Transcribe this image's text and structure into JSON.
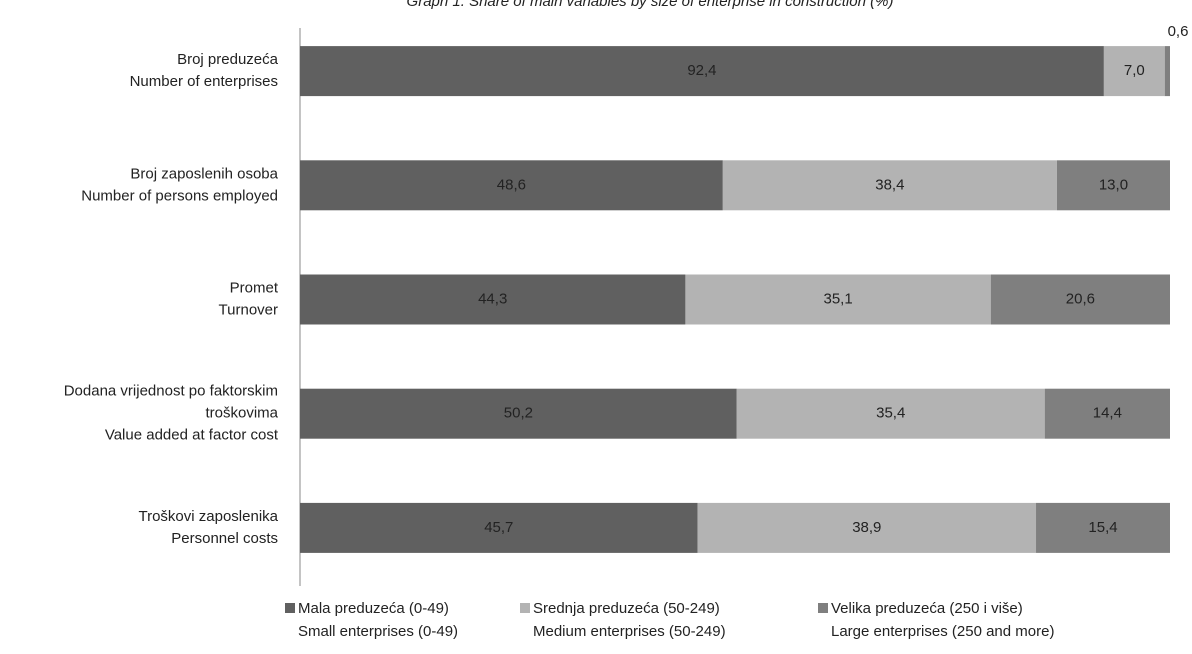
{
  "chart_data": {
    "type": "stacked-bar-horizontal",
    "title": "Graph 1. Share of main variables by size of enterprise in construction (%)",
    "categories": [
      [
        "Broj preduzeća",
        "Number of enterprises"
      ],
      [
        "Broj zaposlenih osoba",
        "Number of persons employed"
      ],
      [
        "Promet",
        "Turnover"
      ],
      [
        "Dodana vrijednost po faktorskim",
        "troškovima",
        "Value added at factor cost"
      ],
      [
        "Troškovi zaposlenika",
        "Personnel costs"
      ]
    ],
    "series": [
      {
        "name": [
          "Mala preduzeća (0-49)",
          "Small enterprises (0-49)"
        ],
        "color": "#606060",
        "values": [
          92.4,
          48.6,
          44.3,
          50.2,
          45.7
        ],
        "value_labels": [
          "92,4",
          "48,6",
          "44,3",
          "50,2",
          "45,7"
        ]
      },
      {
        "name": [
          "Srednja preduzeća (50-249)",
          "Medium enterprises (50-249)"
        ],
        "color": "#b3b3b3",
        "values": [
          7.0,
          38.4,
          35.1,
          35.4,
          38.9
        ],
        "value_labels": [
          "7,0",
          "38,4",
          "35,1",
          "35,4",
          "38,9"
        ]
      },
      {
        "name": [
          "Velika preduzeća (250 i više)",
          "Large enterprises (250 and more)"
        ],
        "color": "#7f7f7f",
        "values": [
          0.6,
          13.0,
          20.6,
          14.4,
          15.4
        ],
        "value_labels": [
          "0,6",
          "13,0",
          "20,6",
          "14,4",
          "15,4"
        ]
      }
    ],
    "xlim": [
      0,
      100
    ],
    "legend": "bottom"
  }
}
